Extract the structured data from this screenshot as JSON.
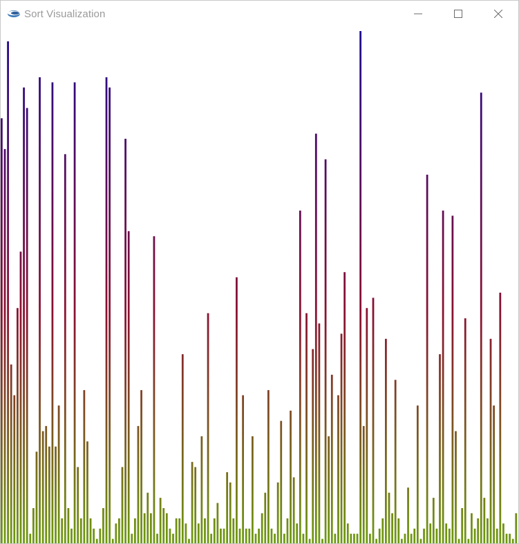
{
  "window": {
    "title": "Sort Visualization",
    "app_icon": "eclipse-icon",
    "controls": [
      "minimize-icon",
      "maximize-icon",
      "close-icon"
    ]
  },
  "colors": {
    "bar_top": "#1c0690",
    "bar_mid": "#8a1030",
    "bar_bottom": "#6e9a10",
    "title_text": "#9a9a9a",
    "control_icon": "#6a6a6a"
  },
  "chart_data": {
    "type": "bar",
    "description_of_order": "left-to-right bar heights, values in percent of canvas height",
    "values": [
      83,
      77,
      98,
      35,
      29,
      46,
      57,
      89,
      85,
      2,
      7,
      18,
      91,
      22,
      23,
      19,
      90,
      19,
      27,
      5,
      76,
      7,
      3,
      90,
      15,
      5,
      30,
      20,
      5,
      3,
      1,
      3,
      7,
      91,
      89,
      1,
      4,
      5,
      15,
      79,
      61,
      2,
      5,
      23,
      30,
      6,
      10,
      6,
      60,
      2,
      9,
      7,
      6,
      3,
      2,
      5,
      5,
      37,
      4,
      1,
      16,
      15,
      4,
      21,
      5,
      45,
      2,
      5,
      8,
      3,
      3,
      14,
      12,
      5,
      52,
      3,
      29,
      3,
      3,
      21,
      2,
      3,
      6,
      10,
      30,
      3,
      2,
      12,
      24,
      2,
      5,
      26,
      13,
      4,
      65,
      2,
      45,
      1,
      38,
      80,
      43,
      1,
      75,
      21,
      33,
      2,
      29,
      41,
      53,
      4,
      2,
      2,
      2,
      100,
      23,
      46,
      2,
      48,
      1,
      3,
      5,
      40,
      10,
      6,
      32,
      5,
      1,
      2,
      11,
      2,
      3,
      27,
      1,
      3,
      72,
      4,
      9,
      3,
      37,
      65,
      4,
      3,
      64,
      22,
      1,
      7,
      44,
      1,
      6,
      3,
      5,
      88,
      9,
      5,
      40,
      27,
      3,
      49,
      4,
      2,
      2,
      1,
      6
    ],
    "xlabel": "",
    "ylabel": "",
    "ylim": [
      0,
      100
    ]
  }
}
